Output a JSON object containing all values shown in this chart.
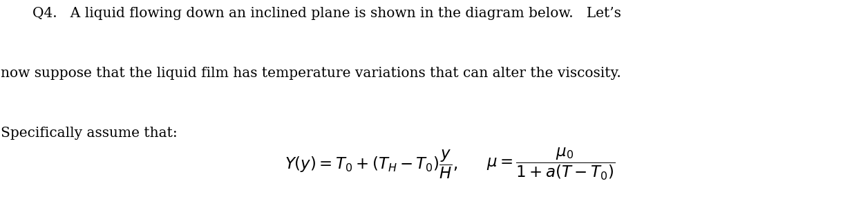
{
  "background_color": "#ffffff",
  "figsize": [
    12.46,
    2.92
  ],
  "dpi": 100,
  "text_color": "#000000",
  "line1": "Q4.   A liquid flowing down an inclined plane is shown in the diagram below.   Let’s",
  "line2": "now suppose that the liquid film has temperature variations that can alter the viscosity.",
  "line3": "Specifically assume that:",
  "formula1": "$Y(y) = T_0 + (T_H - T_0)\\dfrac{y}{H},$",
  "formula2": "$\\mu = \\dfrac{\\mu_0}{1 + a(T - T_0)}$",
  "font_size_text": 14.5,
  "font_size_formula": 16.5,
  "font_family": "serif"
}
